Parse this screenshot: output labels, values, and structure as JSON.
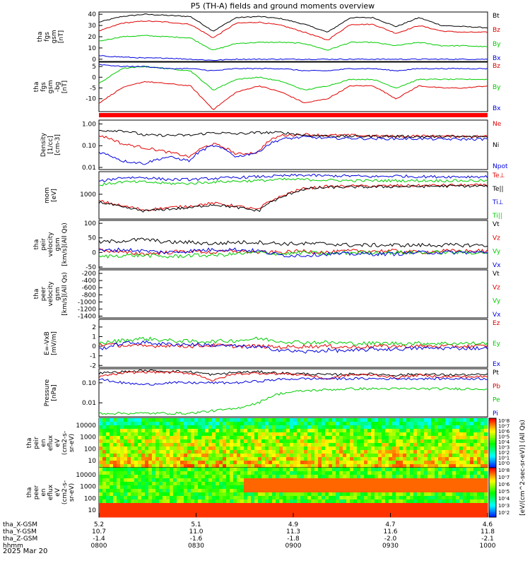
{
  "title": "P5 (TH-A) fields and ground moments overview",
  "date_label": "2025 Mar 20",
  "colors": {
    "black": "#000000",
    "red": "#e00000",
    "green": "#00cc00",
    "blue": "#0000dd"
  },
  "colorbar": {
    "label": "[eV/(cm^2-sec-sr-eV)] (All Qs)",
    "top_ticks": [
      "10^8",
      "10^7",
      "10^6",
      "10^5",
      "10^4",
      "10^3",
      "10^2",
      "10^1",
      "10^0"
    ],
    "bottom_ticks": [
      "10^8",
      "10^7",
      "10^6",
      "10^5",
      "10^4",
      "10^3",
      "10^2"
    ]
  },
  "ephemeris": {
    "row_labels": [
      "tha_X-GSM",
      "tha_Y-GSM",
      "tha_Z-GSM",
      "hhmm"
    ],
    "columns": [
      [
        "5.2",
        "10.7",
        "-1.4",
        "0800"
      ],
      [
        "5.1",
        "11.0",
        "-1.6",
        "0830"
      ],
      [
        "4.9",
        "11.3",
        "-1.8",
        "0900"
      ],
      [
        "4.7",
        "11.6",
        "-2.0",
        "0930"
      ],
      [
        "4.6",
        "11.8",
        "-2.1",
        "1000"
      ]
    ]
  },
  "chart_data": [
    {
      "type": "line",
      "ylabel": [
        "tha",
        "fgs",
        "gsm",
        "[nT]"
      ],
      "yticks": [
        "40",
        "30",
        "20",
        "10",
        "0"
      ],
      "ylim": [
        -2,
        42
      ],
      "series": [
        {
          "name": "Bt",
          "color": "black",
          "base": [
            33,
            38,
            40,
            39,
            38,
            25,
            37,
            38,
            36,
            31,
            24,
            37,
            37,
            29,
            37,
            30,
            29,
            28
          ]
        },
        {
          "name": "Bz",
          "color": "red",
          "base": [
            25,
            32,
            34,
            33,
            31,
            19,
            32,
            33,
            30,
            24,
            17,
            31,
            31,
            23,
            30,
            25,
            24,
            24
          ]
        },
        {
          "name": "By",
          "color": "green",
          "base": [
            16,
            20,
            21,
            20,
            19,
            8,
            14,
            15,
            15,
            14,
            8,
            15,
            15,
            12,
            15,
            12,
            12,
            11
          ]
        },
        {
          "name": "Bx",
          "color": "blue",
          "base": [
            3,
            2,
            1,
            1,
            0,
            -1,
            0,
            0,
            0,
            0,
            0,
            0,
            0,
            0,
            0,
            0,
            0,
            0
          ]
        }
      ]
    },
    {
      "type": "line",
      "ylabel": [
        "tha",
        "fgs",
        "gsm",
        "-bg",
        "[nT]"
      ],
      "yticks": [
        "5",
        "0",
        "-5",
        "-10"
      ],
      "ylim": [
        -16,
        7
      ],
      "series": [
        {
          "name": "Bz",
          "color": "red",
          "base": [
            -12,
            -5,
            -2,
            -3,
            -4,
            -15,
            -7,
            -4,
            -7,
            -12,
            -10,
            -4,
            -4,
            -10,
            -4,
            -5,
            -5,
            -4
          ]
        },
        {
          "name": "By",
          "color": "green",
          "base": [
            -3,
            4,
            5,
            4,
            3,
            -6,
            -1,
            0,
            -2,
            -6,
            -4,
            -1,
            -1,
            -5,
            -1,
            -1,
            -1,
            -1
          ]
        },
        {
          "name": "Bx",
          "color": "blue",
          "base": [
            6,
            5,
            5,
            4,
            4,
            3,
            4,
            4,
            4,
            3,
            3,
            4,
            4,
            3,
            4,
            4,
            4,
            4
          ]
        }
      ]
    },
    {
      "type": "flag",
      "label": "red_flag_bar"
    },
    {
      "type": "line",
      "log": true,
      "ylabel": [
        "Density",
        "[1/cc]",
        "[cm-3]"
      ],
      "yticks": [
        "1.00",
        "0.10",
        "0.01"
      ],
      "ylim": [
        0.008,
        1.5
      ],
      "series": [
        {
          "name": "Ne",
          "color": "red",
          "base": [
            0.3,
            0.12,
            0.08,
            0.05,
            0.03,
            0.12,
            0.04,
            0.05,
            0.3,
            0.33,
            0.3,
            0.3,
            0.28,
            0.27,
            0.28,
            0.27,
            0.27,
            0.27
          ]
        },
        {
          "name": "Ni",
          "color": "black",
          "base": [
            0.5,
            0.5,
            0.3,
            0.3,
            0.3,
            0.4,
            0.35,
            0.4,
            0.4,
            0.3,
            0.28,
            0.27,
            0.27,
            0.27,
            0.26,
            0.26,
            0.26,
            0.26
          ]
        },
        {
          "name": "Npot",
          "color": "blue",
          "base": [
            0.05,
            0.02,
            0.015,
            0.03,
            0.02,
            0.1,
            0.03,
            0.05,
            0.2,
            0.25,
            0.22,
            0.22,
            0.21,
            0.21,
            0.21,
            0.2,
            0.2,
            0.2
          ]
        }
      ]
    },
    {
      "type": "line",
      "log": true,
      "ylabel": [
        "mom",
        "[eV]"
      ],
      "yticks": [
        "1000"
      ],
      "ylim": [
        80,
        10000
      ],
      "series": [
        {
          "name": "Te⊥",
          "color": "red",
          "base": [
            500,
            300,
            200,
            250,
            300,
            400,
            300,
            200,
            800,
            1800,
            2200,
            2300,
            2300,
            2400,
            2400,
            2500,
            2500,
            2500
          ]
        },
        {
          "name": "Te||",
          "color": "black",
          "base": [
            450,
            260,
            180,
            220,
            250,
            350,
            260,
            180,
            700,
            1700,
            2000,
            2100,
            2100,
            2200,
            2200,
            2300,
            2300,
            2300
          ]
        },
        {
          "name": "Ti⊥",
          "color": "blue",
          "base": [
            3500,
            5500,
            5500,
            4500,
            4500,
            5000,
            5500,
            6000,
            6500,
            7000,
            6500,
            6500,
            6000,
            6500,
            6000,
            6000,
            6000,
            6000
          ]
        },
        {
          "name": "Ti||",
          "color": "green",
          "base": [
            2500,
            3500,
            3500,
            3000,
            3000,
            3500,
            3800,
            4000,
            4500,
            4500,
            4200,
            4000,
            4000,
            4000,
            4000,
            4000,
            4000,
            4000
          ]
        }
      ]
    },
    {
      "type": "line",
      "ylabel": [
        "tha",
        "peir",
        "velocity",
        "gsm",
        "[km/s](All Qs)"
      ],
      "yticks": [
        "100",
        "50",
        "0",
        "-50"
      ],
      "ylim": [
        -55,
        110
      ],
      "series": [
        {
          "name": "Vt",
          "color": "black",
          "base": [
            35,
            40,
            45,
            35,
            35,
            30,
            35,
            35,
            30,
            30,
            30,
            25,
            25,
            25,
            25,
            25,
            25,
            25
          ]
        },
        {
          "name": "Vz",
          "color": "red",
          "base": [
            10,
            0,
            -5,
            0,
            5,
            0,
            5,
            0,
            0,
            5,
            0,
            5,
            5,
            5,
            0,
            5,
            5,
            5
          ]
        },
        {
          "name": "Vy",
          "color": "green",
          "base": [
            -15,
            -10,
            -10,
            -15,
            -10,
            -10,
            -5,
            0,
            -5,
            0,
            -5,
            0,
            0,
            0,
            0,
            0,
            0,
            0
          ]
        },
        {
          "name": "Vx",
          "color": "blue",
          "base": [
            5,
            10,
            5,
            0,
            5,
            10,
            10,
            5,
            -10,
            -10,
            -5,
            -5,
            -5,
            -5,
            0,
            0,
            0,
            0
          ]
        }
      ]
    },
    {
      "type": "line",
      "ylabel": [
        "tha",
        "peer",
        "velocity",
        "gsm",
        "[km/s](All Qs)"
      ],
      "yticks": [
        "-200",
        "-400",
        "-600",
        "-800",
        "-1000",
        "-1200",
        "-1400"
      ],
      "ylim": [
        -1450,
        -100
      ],
      "series": [
        {
          "name": "Vt",
          "color": "black",
          "base": []
        },
        {
          "name": "Vz",
          "color": "red",
          "base": []
        },
        {
          "name": "Vy",
          "color": "green",
          "base": []
        },
        {
          "name": "Vx",
          "color": "blue",
          "base": []
        }
      ]
    },
    {
      "type": "line",
      "ylabel": [
        "E=-VxB",
        "[mV/m]"
      ],
      "yticks": [
        "2",
        "1",
        "0",
        "-1",
        "-2"
      ],
      "ylim": [
        -2.2,
        2.8
      ],
      "series": [
        {
          "name": "Ez",
          "color": "red",
          "base": [
            0.2,
            0.1,
            0,
            0.1,
            0,
            0.1,
            0,
            0,
            -0.1,
            0,
            0,
            -0.1,
            0,
            0,
            0,
            0,
            0,
            0
          ]
        },
        {
          "name": "Ey",
          "color": "green",
          "base": [
            0.3,
            0.6,
            0.8,
            0.6,
            0.5,
            0.5,
            0.6,
            0.8,
            0.5,
            0.4,
            0.4,
            0.3,
            0.3,
            0.3,
            0.3,
            0.3,
            0.3,
            0.3
          ]
        },
        {
          "name": "Ex",
          "color": "blue",
          "base": [
            -0.3,
            0.3,
            0.4,
            0.2,
            0.2,
            0.1,
            0,
            -0.1,
            -0.4,
            -0.6,
            -0.4,
            -0.5,
            -0.3,
            -0.3,
            -0.2,
            -0.2,
            -0.2,
            -0.2
          ]
        }
      ]
    },
    {
      "type": "line",
      "log": true,
      "ylabel": [
        "Pressure",
        "[nPa]"
      ],
      "yticks": [
        "0.10",
        "0.01"
      ],
      "ylim": [
        0.002,
        0.5
      ],
      "series": [
        {
          "name": "Pt",
          "color": "black",
          "base": [
            0.3,
            0.35,
            0.4,
            0.38,
            0.35,
            0.25,
            0.33,
            0.35,
            0.3,
            0.28,
            0.25,
            0.27,
            0.27,
            0.24,
            0.27,
            0.25,
            0.25,
            0.25
          ]
        },
        {
          "name": "Pb",
          "color": "red",
          "base": [
            0.2,
            0.3,
            0.35,
            0.33,
            0.3,
            0.12,
            0.28,
            0.3,
            0.28,
            0.25,
            0.15,
            0.25,
            0.25,
            0.18,
            0.24,
            0.2,
            0.2,
            0.2
          ]
        },
        {
          "name": "Pe",
          "color": "green",
          "base": [
            0.003,
            0.003,
            0.003,
            0.003,
            0.003,
            0.004,
            0.005,
            0.01,
            0.03,
            0.04,
            0.045,
            0.05,
            0.05,
            0.05,
            0.05,
            0.05,
            0.05,
            0.05
          ]
        },
        {
          "name": "Pi",
          "color": "blue",
          "base": [
            0.15,
            0.1,
            0.08,
            0.1,
            0.1,
            0.1,
            0.1,
            0.12,
            0.15,
            0.16,
            0.16,
            0.16,
            0.16,
            0.16,
            0.16,
            0.16,
            0.16,
            0.16
          ]
        }
      ]
    },
    {
      "type": "heatmap",
      "ylabel": [
        "tha",
        "peir",
        "en",
        "eflux",
        "eV",
        "(cm2-s-",
        "sr-eV)"
      ],
      "yticks": [
        "10000",
        "1000",
        "100",
        "10"
      ]
    },
    {
      "type": "heatmap",
      "ylabel": [
        "tha",
        "peer",
        "en",
        "eflux",
        "eV",
        "(cm2-s-",
        "sr-eV)"
      ],
      "yticks": [
        "10000",
        "1000",
        "100",
        "10"
      ]
    }
  ]
}
